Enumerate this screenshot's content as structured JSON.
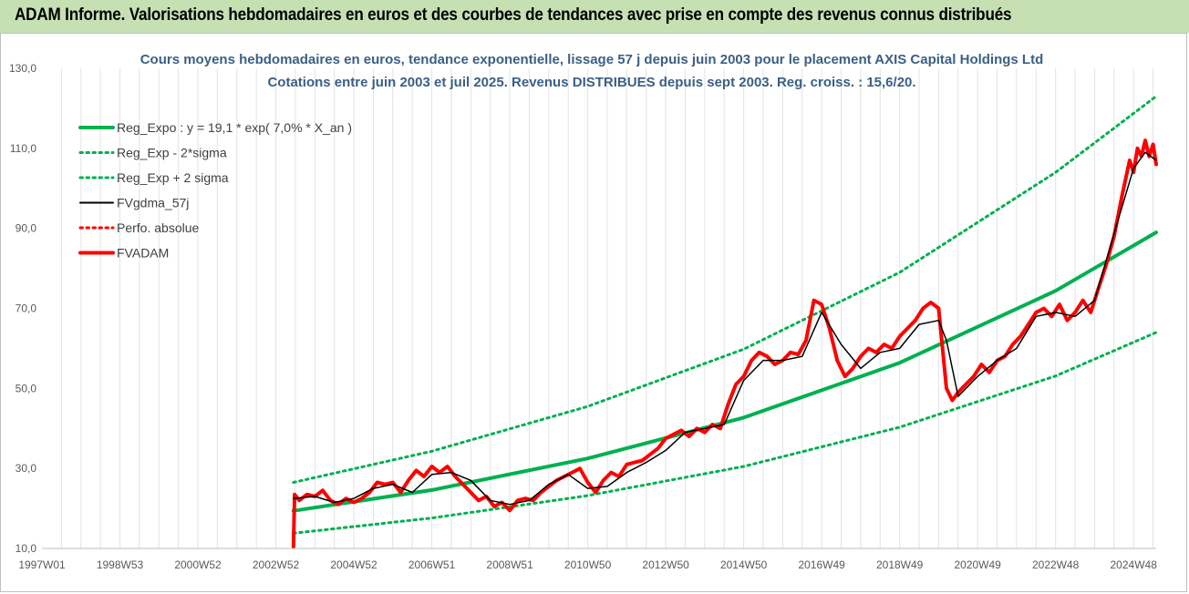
{
  "banner": {
    "title": "ADAM Informe. Valorisations hebdomadaires en euros et des courbes de tendances avec prise en compte des revenus connus distribués"
  },
  "chart_data": {
    "type": "line",
    "title": "Cours moyens hebdomadaires en euros, tendance exponentielle, lissage 57 j depuis juin 2003 pour le placement AXIS Capital Holdings Ltd",
    "subtitle": "Cotations entre juin 2003 et juil 2025.  Revenus DISTRIBUES depuis sept 2003. Reg. croiss. : 15,6/20.",
    "xlabel": "",
    "ylabel": "",
    "x_range": [
      1997.0,
      2025.58
    ],
    "ylim": [
      10,
      130
    ],
    "y_ticks": [
      "10,0",
      "30,0",
      "50,0",
      "70,0",
      "90,0",
      "110,0",
      "130,0"
    ],
    "y_tick_values": [
      10,
      30,
      50,
      70,
      90,
      110,
      130
    ],
    "x_ticks": [
      "1997W01",
      "1998W53",
      "2000W52",
      "2002W52",
      "2004W52",
      "2006W51",
      "2008W51",
      "2010W50",
      "2012W50",
      "2014W50",
      "2016W49",
      "2018W49",
      "2020W49",
      "2022W48",
      "2024W48"
    ],
    "x_tick_values": [
      1997.0,
      1999.0,
      2001.0,
      2003.0,
      2005.0,
      2007.0,
      2009.0,
      2011.0,
      2013.0,
      2015.0,
      2017.0,
      2019.0,
      2021.0,
      2023.0,
      2025.0
    ],
    "grid": {
      "vertical": true,
      "horizontal": false
    },
    "legend": "top-left",
    "series": [
      {
        "name": "Reg_Expo : y = 19,1 * exp( 7,0% *  X_an )",
        "style": "solid-thick",
        "color": "#00b050",
        "x": [
          2003.45,
          2007,
          2011,
          2015,
          2019,
          2023,
          2025.58
        ],
        "y": [
          19.4,
          24.6,
          32.5,
          42.7,
          56.4,
          74.4,
          89.0
        ]
      },
      {
        "name": "Reg_Exp - 2*sigma",
        "style": "dotted",
        "color": "#00b050",
        "x": [
          2003.45,
          2007,
          2011,
          2015,
          2019,
          2023,
          2025.58
        ],
        "y": [
          13.8,
          17.6,
          23.2,
          30.5,
          40.3,
          53.1,
          64.0
        ]
      },
      {
        "name": "Reg_Exp + 2 sigma",
        "style": "dotted",
        "color": "#00b050",
        "x": [
          2003.45,
          2007,
          2011,
          2015,
          2019,
          2023,
          2025.58
        ],
        "y": [
          26.5,
          34.3,
          45.5,
          59.8,
          79.0,
          104.0,
          123.0
        ]
      },
      {
        "name": "FVgdma_57j",
        "style": "solid",
        "color": "#000000",
        "x": [
          2003.45,
          2004,
          2004.5,
          2005,
          2005.5,
          2006,
          2006.5,
          2007,
          2007.5,
          2008,
          2008.5,
          2009,
          2009.5,
          2010,
          2010.5,
          2011,
          2011.5,
          2012,
          2012.5,
          2013,
          2013.5,
          2014,
          2014.5,
          2015,
          2015.5,
          2016,
          2016.5,
          2017,
          2017.5,
          2018,
          2018.5,
          2019,
          2019.5,
          2020,
          2020.2,
          2020.5,
          2021,
          2021.5,
          2022,
          2022.5,
          2023,
          2023.5,
          2024,
          2024.3,
          2024.6,
          2025,
          2025.3,
          2025.58
        ],
        "y": [
          22.5,
          23.0,
          21.5,
          22.5,
          25.0,
          26.0,
          24.0,
          28.5,
          29.0,
          27.0,
          22.0,
          21.0,
          22.0,
          26.0,
          28.5,
          25.0,
          25.5,
          29.0,
          31.5,
          34.5,
          39.0,
          40.0,
          41.0,
          52.0,
          57.0,
          57.0,
          58.0,
          69.0,
          61.0,
          55.0,
          59.0,
          60.0,
          66.0,
          67.0,
          62.0,
          48.0,
          53.0,
          57.0,
          60.0,
          68.0,
          69.0,
          68.0,
          72.0,
          82.0,
          92.0,
          105.0,
          109.0,
          107.0
        ]
      },
      {
        "name": "Perfo. absolue",
        "style": "dotted",
        "color": "#ff0000",
        "x": [],
        "y": []
      },
      {
        "name": "FVADAM",
        "style": "solid-thick",
        "color": "#ff0000",
        "x": [
          2003.45,
          2003.48,
          2003.6,
          2003.8,
          2004.0,
          2004.2,
          2004.4,
          2004.6,
          2004.8,
          2005.0,
          2005.2,
          2005.4,
          2005.6,
          2005.8,
          2006.0,
          2006.2,
          2006.4,
          2006.6,
          2006.8,
          2007.0,
          2007.2,
          2007.4,
          2007.6,
          2007.8,
          2008.0,
          2008.2,
          2008.4,
          2008.6,
          2008.8,
          2009.0,
          2009.2,
          2009.4,
          2009.6,
          2009.8,
          2010.0,
          2010.2,
          2010.4,
          2010.6,
          2010.8,
          2011.0,
          2011.2,
          2011.4,
          2011.6,
          2011.8,
          2012.0,
          2012.2,
          2012.4,
          2012.6,
          2012.8,
          2013.0,
          2013.2,
          2013.4,
          2013.6,
          2013.8,
          2014.0,
          2014.2,
          2014.4,
          2014.6,
          2014.8,
          2015.0,
          2015.2,
          2015.4,
          2015.6,
          2015.8,
          2016.0,
          2016.2,
          2016.4,
          2016.6,
          2016.8,
          2017.0,
          2017.2,
          2017.4,
          2017.6,
          2017.8,
          2018.0,
          2018.2,
          2018.4,
          2018.6,
          2018.8,
          2019.0,
          2019.2,
          2019.4,
          2019.6,
          2019.8,
          2020.0,
          2020.1,
          2020.2,
          2020.35,
          2020.5,
          2020.7,
          2020.9,
          2021.1,
          2021.3,
          2021.5,
          2021.7,
          2021.9,
          2022.1,
          2022.3,
          2022.5,
          2022.7,
          2022.9,
          2023.1,
          2023.3,
          2023.5,
          2023.7,
          2023.9,
          2024.1,
          2024.3,
          2024.5,
          2024.7,
          2024.9,
          2025.0,
          2025.1,
          2025.2,
          2025.3,
          2025.4,
          2025.5,
          2025.58
        ],
        "y": [
          10.5,
          23.5,
          22.0,
          23.5,
          23.0,
          24.5,
          22.0,
          21.0,
          22.5,
          21.5,
          22.5,
          24.0,
          26.5,
          26.0,
          26.5,
          24.0,
          27.0,
          29.5,
          28.0,
          30.5,
          29.0,
          30.5,
          28.0,
          26.0,
          24.0,
          22.0,
          23.0,
          20.5,
          21.5,
          19.5,
          22.0,
          22.5,
          22.0,
          24.0,
          25.5,
          27.0,
          28.0,
          29.0,
          30.0,
          26.5,
          24.0,
          27.0,
          29.0,
          28.0,
          31.0,
          31.5,
          32.0,
          33.5,
          35.0,
          37.5,
          38.5,
          39.5,
          38.0,
          40.0,
          39.0,
          41.0,
          40.0,
          46.0,
          51.0,
          53.0,
          57.0,
          59.0,
          58.0,
          56.0,
          57.0,
          59.0,
          58.5,
          62.0,
          72.0,
          71.0,
          65.0,
          57.0,
          53.0,
          55.0,
          58.0,
          60.0,
          59.0,
          61.0,
          60.0,
          63.0,
          65.0,
          67.0,
          70.0,
          71.5,
          70.0,
          60.0,
          50.0,
          47.0,
          49.0,
          51.0,
          53.0,
          56.0,
          54.0,
          57.0,
          58.0,
          61.0,
          63.0,
          66.0,
          69.0,
          70.0,
          68.0,
          71.0,
          67.0,
          69.0,
          72.0,
          69.0,
          75.0,
          81.0,
          88.0,
          98.0,
          107.0,
          104.0,
          110.0,
          108.0,
          112.0,
          108.0,
          111.0,
          106.0
        ]
      }
    ]
  }
}
